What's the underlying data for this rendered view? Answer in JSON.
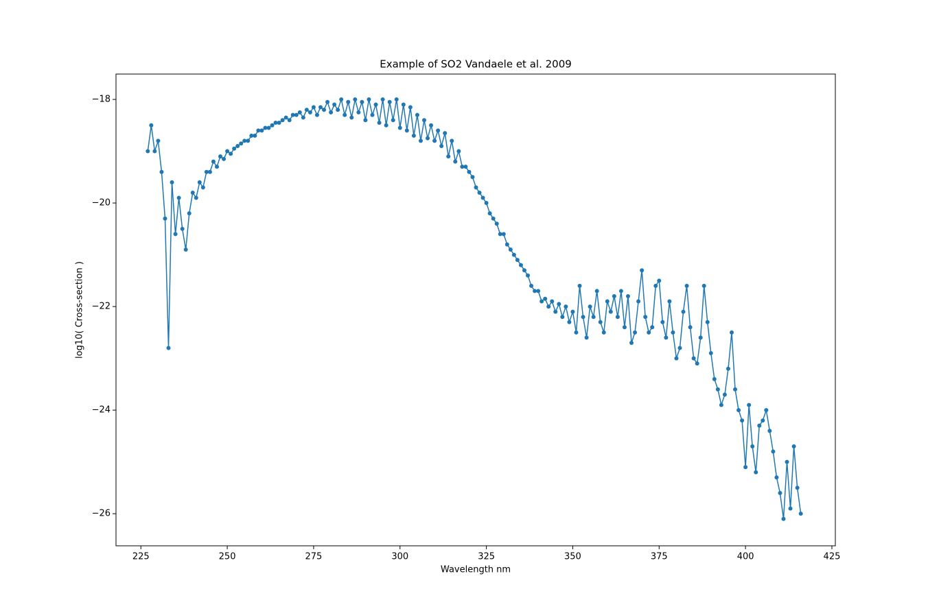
{
  "chart_data": {
    "type": "line",
    "title": "Example of SO2 Vandaele et al. 2009",
    "xlabel": "Wavelength nm",
    "ylabel": "log10( Cross-section )",
    "xlim": [
      217.8,
      426.0
    ],
    "ylim": [
      -26.62,
      -17.51
    ],
    "xticks": [
      225,
      250,
      275,
      300,
      325,
      350,
      375,
      400,
      425
    ],
    "yticks": [
      {
        "value": -26,
        "label": "−26"
      },
      {
        "value": -24,
        "label": "−24"
      },
      {
        "value": -22,
        "label": "−22"
      },
      {
        "value": -20,
        "label": "−20"
      },
      {
        "value": -18,
        "label": "−18"
      }
    ],
    "markers": true,
    "series": [
      {
        "color": "#1f77b4",
        "x": [
          227,
          228,
          229,
          230,
          231,
          232,
          233,
          234,
          235,
          236,
          237,
          238,
          239,
          240,
          241,
          242,
          243,
          244,
          245,
          246,
          247,
          248,
          249,
          250,
          251,
          252,
          253,
          254,
          255,
          256,
          257,
          258,
          259,
          260,
          261,
          262,
          263,
          264,
          265,
          266,
          267,
          268,
          269,
          270,
          271,
          272,
          273,
          274,
          275,
          276,
          277,
          278,
          279,
          280,
          281,
          282,
          283,
          284,
          285,
          286,
          287,
          288,
          289,
          290,
          291,
          292,
          293,
          294,
          295,
          296,
          297,
          298,
          299,
          300,
          301,
          302,
          303,
          304,
          305,
          306,
          307,
          308,
          309,
          310,
          311,
          312,
          313,
          314,
          315,
          316,
          317,
          318,
          319,
          320,
          321,
          322,
          323,
          324,
          325,
          326,
          327,
          328,
          329,
          330,
          331,
          332,
          333,
          334,
          335,
          336,
          337,
          338,
          339,
          340,
          341,
          342,
          343,
          344,
          345,
          346,
          347,
          348,
          349,
          350,
          351,
          352,
          353,
          354,
          355,
          356,
          357,
          358,
          359,
          360,
          361,
          362,
          363,
          364,
          365,
          366,
          367,
          368,
          369,
          370,
          371,
          372,
          373,
          374,
          375,
          376,
          377,
          378,
          379,
          380,
          381,
          382,
          383,
          384,
          385,
          386,
          387,
          388,
          389,
          390,
          391,
          392,
          393,
          394,
          395,
          396,
          397,
          398,
          399,
          400,
          401,
          402,
          403,
          404,
          405,
          406,
          407,
          408,
          409,
          410,
          411,
          412,
          413,
          414,
          415,
          416
        ],
        "values": [
          -19.0,
          -18.5,
          -19.0,
          -18.8,
          -19.4,
          -20.3,
          -22.8,
          -19.6,
          -20.6,
          -19.9,
          -20.5,
          -20.9,
          -20.2,
          -19.8,
          -19.9,
          -19.6,
          -19.7,
          -19.4,
          -19.4,
          -19.2,
          -19.3,
          -19.1,
          -19.15,
          -19.0,
          -19.05,
          -18.95,
          -18.9,
          -18.85,
          -18.8,
          -18.8,
          -18.7,
          -18.7,
          -18.6,
          -18.6,
          -18.55,
          -18.55,
          -18.5,
          -18.45,
          -18.45,
          -18.4,
          -18.35,
          -18.4,
          -18.3,
          -18.3,
          -18.25,
          -18.35,
          -18.2,
          -18.25,
          -18.15,
          -18.3,
          -18.15,
          -18.2,
          -18.05,
          -18.25,
          -18.1,
          -18.2,
          -18.0,
          -18.3,
          -18.05,
          -18.35,
          -18.0,
          -18.25,
          -18.05,
          -18.4,
          -18.0,
          -18.3,
          -18.1,
          -18.45,
          -18.0,
          -18.5,
          -18.05,
          -18.4,
          -18.0,
          -18.55,
          -18.1,
          -18.6,
          -18.15,
          -18.7,
          -18.3,
          -18.8,
          -18.4,
          -18.75,
          -18.5,
          -18.8,
          -18.6,
          -18.9,
          -18.65,
          -19.1,
          -18.8,
          -19.2,
          -19.0,
          -19.3,
          -19.3,
          -19.4,
          -19.5,
          -19.7,
          -19.8,
          -19.9,
          -20.0,
          -20.2,
          -20.3,
          -20.4,
          -20.6,
          -20.6,
          -20.8,
          -20.9,
          -21.0,
          -21.1,
          -21.2,
          -21.3,
          -21.4,
          -21.6,
          -21.7,
          -21.7,
          -21.9,
          -21.85,
          -22.0,
          -21.9,
          -22.1,
          -21.95,
          -22.2,
          -22.0,
          -22.3,
          -22.1,
          -22.5,
          -21.6,
          -22.2,
          -22.6,
          -22.0,
          -22.2,
          -21.7,
          -22.3,
          -22.5,
          -21.9,
          -22.1,
          -21.8,
          -22.2,
          -21.7,
          -22.4,
          -21.8,
          -22.7,
          -22.5,
          -21.9,
          -21.3,
          -22.2,
          -22.5,
          -22.4,
          -21.6,
          -21.5,
          -22.3,
          -22.6,
          -21.9,
          -22.5,
          -23.0,
          -22.8,
          -22.1,
          -21.6,
          -22.4,
          -23.0,
          -23.1,
          -22.6,
          -21.6,
          -22.3,
          -22.9,
          -23.4,
          -23.6,
          -23.9,
          -23.7,
          -23.2,
          -22.5,
          -23.6,
          -24.0,
          -24.2,
          -25.1,
          -23.9,
          -24.7,
          -25.2,
          -24.3,
          -24.2,
          -24.0,
          -24.4,
          -24.8,
          -25.3,
          -25.6,
          -26.1,
          -25.0,
          -25.9,
          -24.7,
          -25.5,
          -26.0
        ]
      }
    ]
  }
}
